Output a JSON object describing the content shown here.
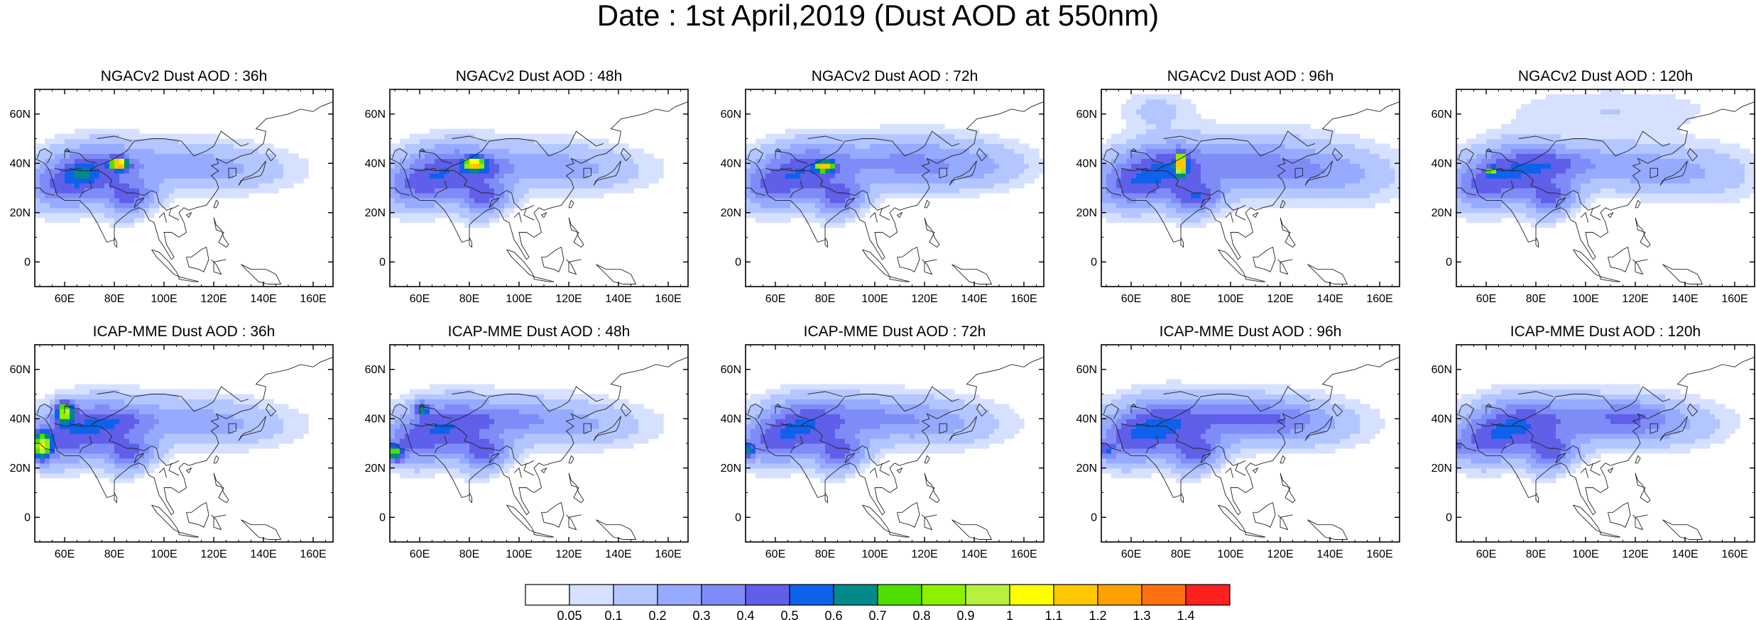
{
  "figure": {
    "title": "Date : 1st April,2019 (Dust AOD at 550nm)",
    "rows": [
      {
        "model": "NGACv2",
        "panels": [
          {
            "title": "NGACv2 Dust AOD : 36h",
            "lead": "36h"
          },
          {
            "title": "NGACv2 Dust AOD : 48h",
            "lead": "48h"
          },
          {
            "title": "NGACv2 Dust AOD : 72h",
            "lead": "72h"
          },
          {
            "title": "NGACv2 Dust AOD : 96h",
            "lead": "96h"
          },
          {
            "title": "NGACv2 Dust AOD : 120h",
            "lead": "120h"
          }
        ]
      },
      {
        "model": "ICAP-MME",
        "panels": [
          {
            "title": "ICAP-MME Dust AOD : 36h",
            "lead": "36h"
          },
          {
            "title": "ICAP-MME Dust AOD : 48h",
            "lead": "48h"
          },
          {
            "title": "ICAP-MME Dust AOD : 72h",
            "lead": "72h"
          },
          {
            "title": "ICAP-MME Dust AOD : 96h",
            "lead": "96h"
          },
          {
            "title": "ICAP-MME Dust AOD : 120h",
            "lead": "120h"
          }
        ]
      }
    ],
    "map_extent": {
      "lon": [
        48,
        168
      ],
      "lat": [
        -10,
        70
      ]
    },
    "lat_ticks": [
      {
        "value": 60,
        "label": "60N"
      },
      {
        "value": 40,
        "label": "40N"
      },
      {
        "value": 20,
        "label": "20N"
      },
      {
        "value": 0,
        "label": "0"
      }
    ],
    "lon_ticks": [
      {
        "value": 60,
        "label": "60E"
      },
      {
        "value": 80,
        "label": "80E"
      },
      {
        "value": 100,
        "label": "100E"
      },
      {
        "value": 120,
        "label": "120E"
      },
      {
        "value": 140,
        "label": "140E"
      },
      {
        "value": 160,
        "label": "160E"
      }
    ],
    "colorbar": {
      "labels": [
        "0.05",
        "0.1",
        "0.2",
        "0.3",
        "0.4",
        "0.5",
        "0.6",
        "0.7",
        "0.8",
        "0.9",
        "1",
        "1.1",
        "1.2",
        "1.3",
        "1.4"
      ],
      "colors": [
        "#ffffff",
        "#d6e0ff",
        "#b4c6ff",
        "#96aaff",
        "#7f8cf8",
        "#5f5fe9",
        "#0e61eb",
        "#008a8a",
        "#4fde00",
        "#8cf000",
        "#b8f040",
        "#ffff00",
        "#ffc800",
        "#ffa000",
        "#ff7010",
        "#ff2020"
      ]
    }
  }
}
